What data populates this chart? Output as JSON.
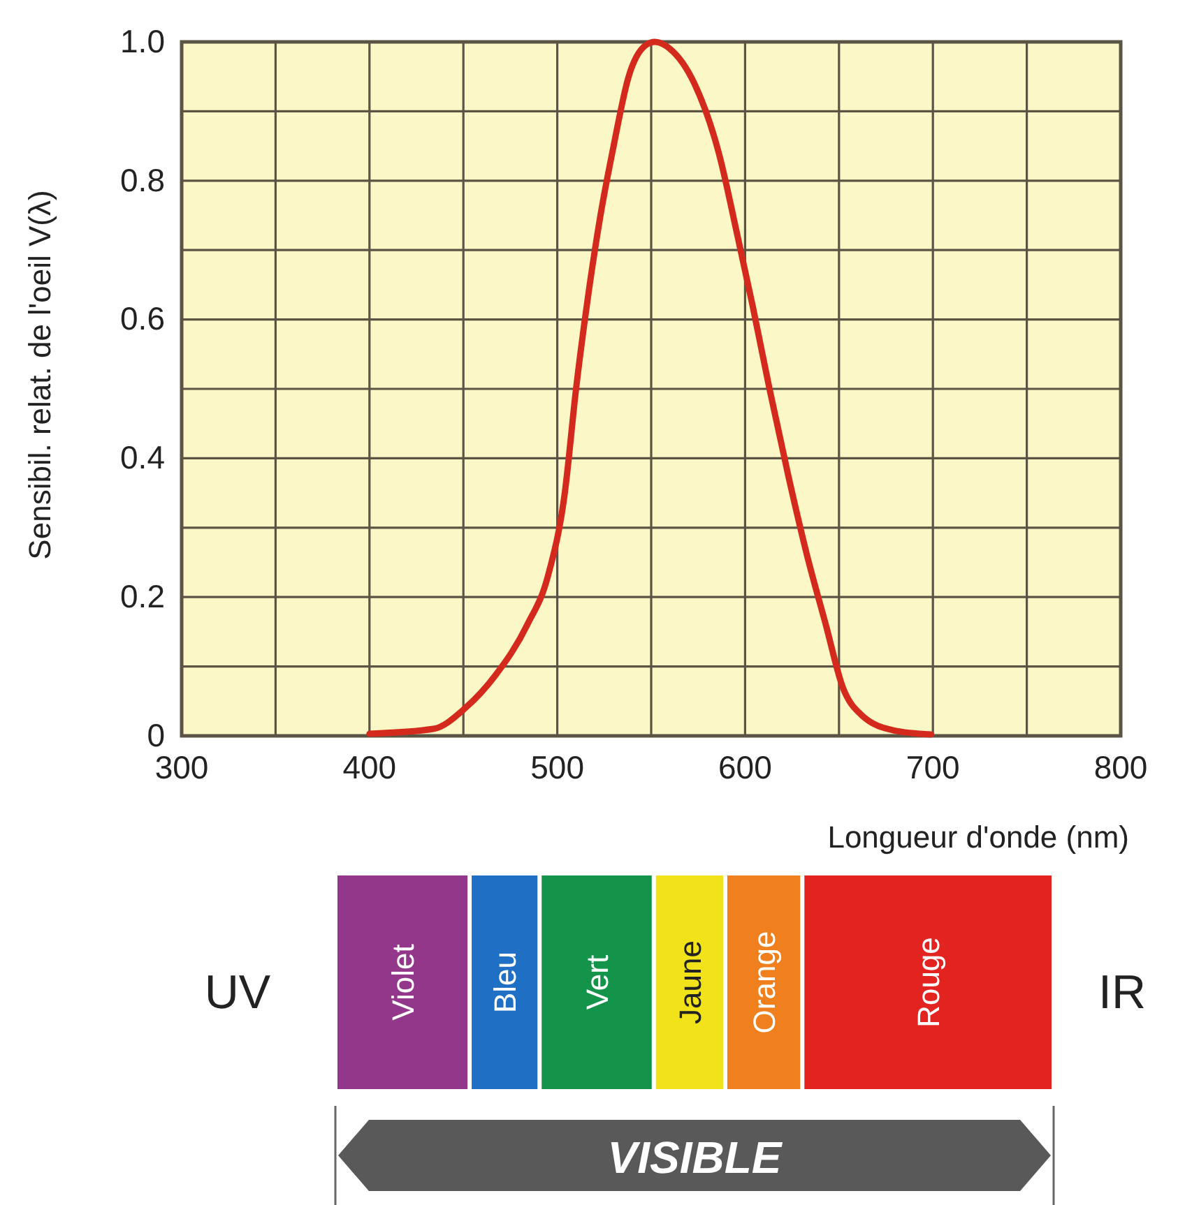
{
  "chart_data": [
    {
      "type": "line",
      "ylabel": "Sensibil. relat. de l'oeil V(λ)",
      "xlabel": "Longueur d'onde (nm)",
      "xlim": [
        300,
        800
      ],
      "ylim": [
        0,
        1
      ],
      "xticks": [
        300,
        {
          "value": 350,
          "label": null
        },
        400,
        {
          "value": 450,
          "label": null
        },
        500,
        {
          "value": 550,
          "label": null
        },
        600,
        {
          "value": 650,
          "label": null
        },
        700,
        {
          "value": 750,
          "label": null
        },
        800
      ],
      "yticks": [
        0,
        {
          "value": 0.1,
          "label": null
        },
        0.2,
        {
          "value": 0.3,
          "label": null
        },
        0.4,
        {
          "value": 0.5,
          "label": null
        },
        0.6,
        {
          "value": 0.7,
          "label": null
        },
        0.8,
        {
          "value": 0.9,
          "label": null
        },
        {
          "value": 1,
          "label": "1.0"
        }
      ],
      "grid": true,
      "marker": "none",
      "line_style": "solid",
      "series": [
        {
          "color": "#d42a1e",
          "x": [
            400,
            434,
            451,
            467,
            484,
            495,
            504,
            510,
            517,
            523,
            530,
            538,
            547,
            552,
            560,
            573,
            586,
            596,
            604,
            613,
            623,
            633,
            643,
            652,
            662,
            679,
            699
          ],
          "values": [
            0.003,
            0.01,
            0.04,
            0.087,
            0.16,
            0.23,
            0.35,
            0.5,
            0.645,
            0.75,
            0.85,
            0.95,
            0.995,
            1,
            0.99,
            0.94,
            0.84,
            0.72,
            0.62,
            0.5,
            0.375,
            0.26,
            0.16,
            0.07,
            0.03,
            0.008,
            0.002
          ]
        }
      ]
    },
    {
      "type": "other",
      "categories": [
        "Violet",
        "Bleu",
        "Vert",
        "Jaune",
        "Orange",
        "Rouge"
      ],
      "colors": [
        "#93378a",
        "#1f6fc4",
        "#13944a",
        "#f2e21a",
        "#f07f1e",
        "#e3231f"
      ],
      "annotations": [
        "UV",
        "IR",
        "VISIBLE"
      ]
    }
  ]
}
